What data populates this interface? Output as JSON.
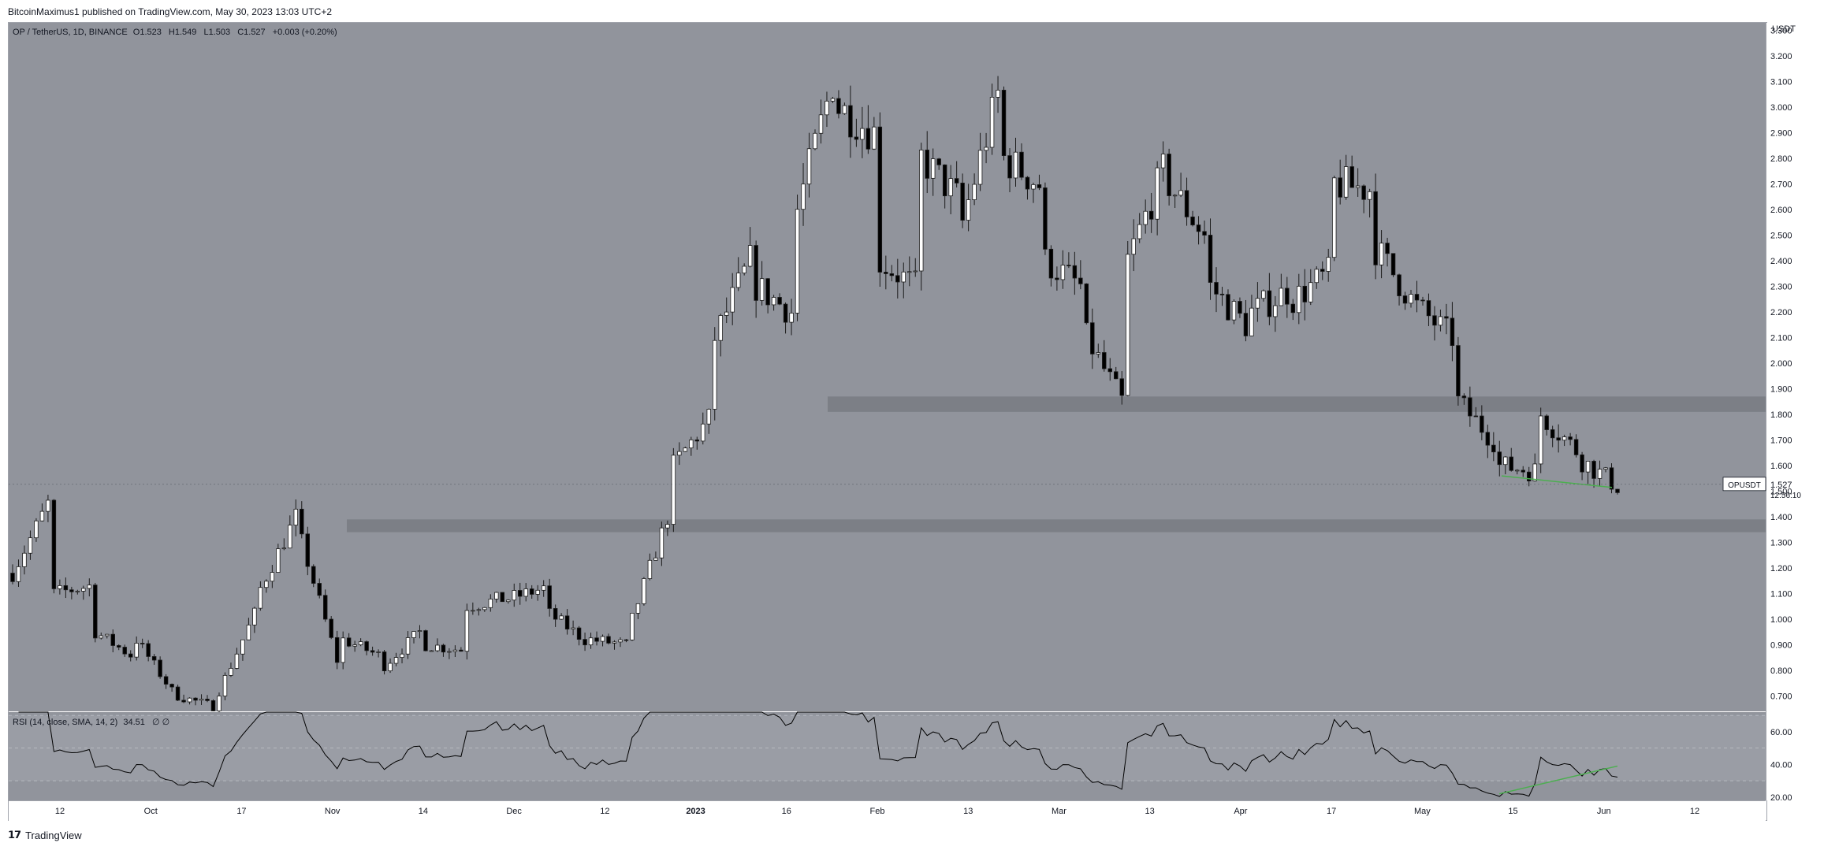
{
  "header": {
    "text": "BitcoinMaximus1 published on TradingView.com, May 30, 2023 13:03 UTC+2"
  },
  "legend": {
    "symbol": "OP / TetherUS, 1D, BINANCE",
    "o_label": "O",
    "o_value": "1.523",
    "h_label": "H",
    "h_value": "1.549",
    "l_label": "L",
    "l_value": "1.503",
    "c_label": "C",
    "c_value": "1.527",
    "change": "+0.003 (+0.20%)"
  },
  "rsi_legend": {
    "text": "RSI (14, close, SMA, 14, 2)",
    "value": "34.51",
    "extra": "∅ ∅"
  },
  "price_axis": {
    "currency": "USDT",
    "ticks": [
      "3.300",
      "3.200",
      "3.100",
      "3.000",
      "2.900",
      "2.800",
      "2.700",
      "2.600",
      "2.500",
      "2.400",
      "2.300",
      "2.200",
      "2.100",
      "2.000",
      "1.900",
      "1.800",
      "1.700",
      "1.600",
      "1.500",
      "1.400",
      "1.300",
      "1.200",
      "1.100",
      "1.000",
      "0.900",
      "0.800",
      "0.700"
    ]
  },
  "rsi_axis": {
    "ticks": [
      "60.00",
      "40.00",
      "20.00"
    ]
  },
  "price_label": {
    "symbol": "OPUSDT",
    "price": "1.527",
    "countdown": "12:56:10"
  },
  "footer": {
    "brand": "TradingView",
    "logo": "tradingview-logo-icon"
  },
  "colors": {
    "pane_bg": "#91949c",
    "up": "#ffffff",
    "down": "#000000",
    "zone": "#787b82",
    "trendline": "#4caf50",
    "rsi_line": "#000000"
  },
  "chart_data": {
    "type": "candlestick",
    "symbol": "OP / TetherUS",
    "interval": "1D",
    "ylim": [
      0.64,
      3.33
    ],
    "x_ticks": [
      "12",
      "Oct",
      "17",
      "Nov",
      "14",
      "Dec",
      "12",
      "2023",
      "16",
      "Feb",
      "13",
      "Mar",
      "13",
      "Apr",
      "17",
      "May",
      "15",
      "Jun",
      "12"
    ],
    "anchors": [
      [
        1.18,
        1.45
      ],
      [
        1.1,
        1.13
      ],
      [
        0.95,
        0.86
      ],
      [
        0.92,
        0.72
      ],
      [
        0.7,
        0.66
      ],
      [
        0.72,
        1.02
      ],
      [
        1.12,
        1.4
      ],
      [
        1.3,
        0.84
      ],
      [
        0.92,
        0.86
      ],
      [
        0.82,
        0.95
      ],
      [
        0.9,
        0.88
      ],
      [
        1.05,
        1.08
      ],
      [
        1.08,
        1.12
      ],
      [
        1.02,
        0.92
      ],
      [
        0.92,
        0.9
      ],
      [
        1.0,
        1.4
      ],
      [
        1.6,
        1.78
      ],
      [
        2.1,
        2.4
      ],
      [
        2.3,
        2.2
      ],
      [
        2.6,
        3.1
      ],
      [
        3.0,
        2.9
      ],
      [
        2.4,
        2.3
      ],
      [
        2.8,
        2.65
      ],
      [
        2.55,
        3.05
      ],
      [
        2.8,
        2.7
      ],
      [
        2.4,
        2.3
      ],
      [
        2.1,
        1.85
      ],
      [
        2.4,
        2.75
      ],
      [
        2.7,
        2.5
      ],
      [
        2.3,
        2.15
      ],
      [
        2.2,
        2.28
      ],
      [
        2.25,
        2.35
      ],
      [
        2.7,
        2.68
      ],
      [
        2.45,
        2.25
      ],
      [
        2.22,
        2.1
      ],
      [
        1.85,
        1.7
      ],
      [
        1.6,
        1.58
      ],
      [
        1.8,
        1.66
      ],
      [
        1.62,
        1.52
      ]
    ],
    "zones": [
      {
        "low": 1.81,
        "high": 1.87
      },
      {
        "low": 1.34,
        "high": 1.39
      }
    ],
    "rsi": {
      "period": 14,
      "smoothing": "SMA",
      "last": 34.51,
      "ylim": [
        18,
        72
      ],
      "levels": [
        30,
        50,
        70
      ]
    },
    "trendlines": [
      {
        "pane": "price",
        "from": [
          1.56
        ],
        "to": [
          1.515
        ]
      },
      {
        "pane": "rsi",
        "from": [
          22
        ],
        "to": [
          39
        ]
      }
    ]
  }
}
